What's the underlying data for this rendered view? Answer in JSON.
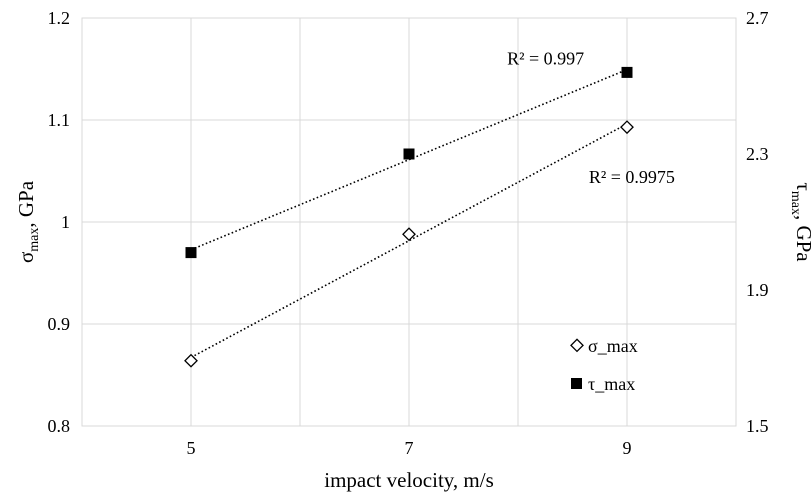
{
  "chart_data": {
    "type": "scatter",
    "x": [
      5,
      7,
      9
    ],
    "xlim": [
      4,
      10
    ],
    "x_ticks": [
      5,
      7,
      9
    ],
    "xlabel": "impact velocity, m/s",
    "y_left": {
      "label_main": "σ",
      "label_sub": "max",
      "label_unit": ", GPa",
      "lim": [
        0.8,
        1.2
      ],
      "ticks": [
        "0.8",
        "0.9",
        "1",
        "1.1",
        "1.2"
      ]
    },
    "y_right": {
      "label_main": "τ",
      "label_sub": "max",
      "label_unit": ", GPa",
      "lim": [
        1.5,
        2.7
      ],
      "ticks": [
        "1.5",
        "1.9",
        "2.3",
        "2.7"
      ]
    },
    "series": [
      {
        "name": "σ_max",
        "axis": "left",
        "marker": "diamond-open",
        "values": [
          0.864,
          0.988,
          1.093
        ],
        "trendline": "linear-dotted",
        "r2_label": "R² = 0.9975"
      },
      {
        "name": "τ_max",
        "axis": "right",
        "marker": "square-filled",
        "values": [
          2.01,
          2.3,
          2.54
        ],
        "trendline": "linear-dotted",
        "r2_label": "R² = 0.997"
      }
    ],
    "grid": true,
    "legend_position": "bottom-right"
  }
}
